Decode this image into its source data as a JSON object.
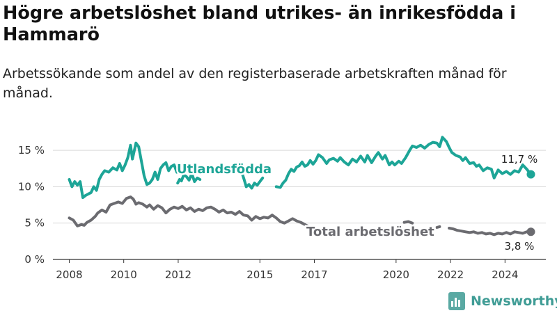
{
  "title": "Högre arbetslöshet bland utrikes- än inrikesfödda i Hammarö",
  "subtitle": "Arbetssökande som andel av den registerbaserade arbetskraften månad för månad.",
  "brand": {
    "name": "Newsworthy",
    "icon": "bar-chart-logo-icon"
  },
  "colors": {
    "utlandsfodda": "#1da597",
    "total": "#6b6b70",
    "grid": "#d9d9d9",
    "axis": "#333333"
  },
  "chart_data": {
    "type": "line",
    "x_unit": "year (decimal)",
    "xlim": [
      2007.4,
      2025.5
    ],
    "ylim": [
      0,
      17.5
    ],
    "grid": "horizontal",
    "x_ticks": [
      {
        "value": 2008,
        "label": "2008"
      },
      {
        "value": 2010,
        "label": "2010"
      },
      {
        "value": 2012,
        "label": "2012"
      },
      {
        "value": 2015,
        "label": "2015"
      },
      {
        "value": 2017,
        "label": "2017"
      },
      {
        "value": 2020,
        "label": "2020"
      },
      {
        "value": 2022,
        "label": "2022"
      },
      {
        "value": 2024,
        "label": "2024"
      }
    ],
    "y_ticks": [
      {
        "value": 0,
        "label": "0 %"
      },
      {
        "value": 5,
        "label": "5 %"
      },
      {
        "value": 10,
        "label": "10 %"
      },
      {
        "value": 15,
        "label": "15 %"
      }
    ],
    "series": [
      {
        "name": "Utlandsfödda",
        "color": "#1da597",
        "end_label": "11,7 %",
        "segments": [
          [
            [
              2008.0,
              11.0
            ],
            [
              2008.1,
              10.0
            ],
            [
              2008.2,
              10.7
            ],
            [
              2008.3,
              10.2
            ],
            [
              2008.4,
              10.7
            ],
            [
              2008.5,
              8.5
            ],
            [
              2008.6,
              8.8
            ],
            [
              2008.8,
              9.2
            ],
            [
              2008.9,
              10.0
            ],
            [
              2009.0,
              9.5
            ],
            [
              2009.1,
              11.0
            ],
            [
              2009.2,
              11.7
            ],
            [
              2009.3,
              12.2
            ],
            [
              2009.45,
              12.0
            ],
            [
              2009.6,
              12.6
            ],
            [
              2009.75,
              12.3
            ],
            [
              2009.85,
              13.2
            ],
            [
              2009.95,
              12.2
            ],
            [
              2010.05,
              13.0
            ],
            [
              2010.15,
              14.0
            ],
            [
              2010.25,
              15.7
            ],
            [
              2010.32,
              13.8
            ],
            [
              2010.45,
              16.0
            ],
            [
              2010.55,
              15.5
            ],
            [
              2010.65,
              13.5
            ],
            [
              2010.75,
              11.5
            ],
            [
              2010.85,
              10.3
            ],
            [
              2010.95,
              10.5
            ],
            [
              2011.05,
              11.0
            ],
            [
              2011.15,
              12.0
            ],
            [
              2011.25,
              11.0
            ],
            [
              2011.35,
              12.5
            ],
            [
              2011.45,
              13.0
            ],
            [
              2011.55,
              13.3
            ],
            [
              2011.65,
              12.2
            ],
            [
              2011.75,
              12.8
            ],
            [
              2011.85,
              13.0
            ],
            [
              2011.95,
              12.0
            ],
            [
              2012.05,
              12.2
            ]
          ],
          [
            [
              2011.98,
              10.5
            ],
            [
              2012.05,
              11.0
            ],
            [
              2012.12,
              10.8
            ],
            [
              2012.2,
              11.6
            ],
            [
              2012.3,
              11.4
            ],
            [
              2012.4,
              10.9
            ],
            [
              2012.5,
              11.8
            ],
            [
              2012.6,
              10.7
            ],
            [
              2012.7,
              11.2
            ],
            [
              2012.8,
              11.0
            ]
          ],
          [
            [
              2014.35,
              11.8
            ],
            [
              2014.42,
              11.0
            ],
            [
              2014.5,
              10.0
            ],
            [
              2014.6,
              10.3
            ],
            [
              2014.7,
              9.8
            ],
            [
              2014.8,
              10.5
            ],
            [
              2014.9,
              10.2
            ],
            [
              2015.0,
              10.7
            ],
            [
              2015.1,
              11.2
            ]
          ],
          [
            [
              2015.6,
              10.0
            ],
            [
              2015.75,
              9.9
            ],
            [
              2015.85,
              10.5
            ],
            [
              2015.95,
              10.9
            ],
            [
              2016.05,
              11.8
            ],
            [
              2016.15,
              12.4
            ],
            [
              2016.25,
              12.1
            ],
            [
              2016.35,
              12.7
            ],
            [
              2016.45,
              12.9
            ],
            [
              2016.55,
              13.4
            ],
            [
              2016.65,
              12.8
            ],
            [
              2016.75,
              13.0
            ],
            [
              2016.85,
              13.6
            ],
            [
              2016.95,
              13.1
            ],
            [
              2017.05,
              13.6
            ],
            [
              2017.15,
              14.4
            ],
            [
              2017.3,
              14.0
            ],
            [
              2017.45,
              13.2
            ],
            [
              2017.55,
              13.7
            ],
            [
              2017.7,
              13.9
            ],
            [
              2017.85,
              13.5
            ],
            [
              2017.95,
              14.0
            ],
            [
              2018.1,
              13.4
            ],
            [
              2018.25,
              13.0
            ],
            [
              2018.4,
              13.8
            ],
            [
              2018.55,
              13.4
            ],
            [
              2018.7,
              14.2
            ],
            [
              2018.85,
              13.4
            ],
            [
              2018.95,
              14.3
            ],
            [
              2019.1,
              13.3
            ],
            [
              2019.25,
              14.2
            ],
            [
              2019.35,
              14.7
            ],
            [
              2019.5,
              13.8
            ],
            [
              2019.6,
              14.3
            ],
            [
              2019.75,
              13.0
            ],
            [
              2019.85,
              13.4
            ],
            [
              2019.95,
              13.0
            ],
            [
              2020.1,
              13.5
            ],
            [
              2020.2,
              13.2
            ],
            [
              2020.35,
              14.0
            ],
            [
              2020.5,
              15.0
            ],
            [
              2020.6,
              15.6
            ],
            [
              2020.75,
              15.4
            ],
            [
              2020.9,
              15.7
            ],
            [
              2021.05,
              15.3
            ],
            [
              2021.2,
              15.8
            ],
            [
              2021.35,
              16.1
            ],
            [
              2021.5,
              16.0
            ],
            [
              2021.6,
              15.5
            ],
            [
              2021.7,
              16.8
            ],
            [
              2021.85,
              16.2
            ],
            [
              2021.95,
              15.4
            ],
            [
              2022.05,
              14.7
            ],
            [
              2022.2,
              14.3
            ],
            [
              2022.35,
              14.1
            ],
            [
              2022.45,
              13.6
            ],
            [
              2022.55,
              14.0
            ],
            [
              2022.7,
              13.2
            ],
            [
              2022.85,
              13.3
            ],
            [
              2022.95,
              12.8
            ],
            [
              2023.05,
              13.0
            ],
            [
              2023.2,
              12.2
            ],
            [
              2023.35,
              12.6
            ],
            [
              2023.5,
              12.4
            ],
            [
              2023.6,
              11.2
            ],
            [
              2023.75,
              12.3
            ],
            [
              2023.9,
              11.8
            ],
            [
              2024.05,
              12.1
            ],
            [
              2024.2,
              11.7
            ],
            [
              2024.35,
              12.2
            ],
            [
              2024.5,
              12.0
            ],
            [
              2024.65,
              13.0
            ],
            [
              2024.8,
              12.4
            ],
            [
              2024.95,
              11.7
            ]
          ]
        ]
      },
      {
        "name": "Total arbetslöshet",
        "color": "#6b6b70",
        "end_label": "3,8 %",
        "segments": [
          [
            [
              2008.0,
              5.7
            ],
            [
              2008.15,
              5.4
            ],
            [
              2008.3,
              4.6
            ],
            [
              2008.45,
              4.8
            ],
            [
              2008.55,
              4.7
            ],
            [
              2008.65,
              5.1
            ],
            [
              2008.8,
              5.4
            ],
            [
              2008.95,
              5.9
            ],
            [
              2009.05,
              6.4
            ],
            [
              2009.2,
              6.8
            ],
            [
              2009.35,
              6.5
            ],
            [
              2009.5,
              7.5
            ],
            [
              2009.65,
              7.7
            ],
            [
              2009.8,
              7.9
            ],
            [
              2009.95,
              7.7
            ],
            [
              2010.1,
              8.4
            ],
            [
              2010.25,
              8.6
            ],
            [
              2010.35,
              8.3
            ],
            [
              2010.45,
              7.6
            ],
            [
              2010.55,
              7.8
            ],
            [
              2010.7,
              7.6
            ],
            [
              2010.85,
              7.2
            ],
            [
              2010.95,
              7.5
            ],
            [
              2011.1,
              6.9
            ],
            [
              2011.25,
              7.4
            ],
            [
              2011.4,
              7.1
            ],
            [
              2011.55,
              6.4
            ],
            [
              2011.7,
              6.9
            ],
            [
              2011.85,
              7.2
            ],
            [
              2012.0,
              7.0
            ],
            [
              2012.15,
              7.3
            ],
            [
              2012.3,
              6.8
            ],
            [
              2012.45,
              7.1
            ],
            [
              2012.6,
              6.6
            ],
            [
              2012.75,
              6.9
            ],
            [
              2012.9,
              6.7
            ],
            [
              2013.05,
              7.1
            ],
            [
              2013.2,
              7.2
            ],
            [
              2013.35,
              6.9
            ],
            [
              2013.5,
              6.5
            ],
            [
              2013.65,
              6.8
            ],
            [
              2013.8,
              6.4
            ],
            [
              2013.95,
              6.5
            ],
            [
              2014.1,
              6.2
            ],
            [
              2014.25,
              6.6
            ],
            [
              2014.4,
              6.1
            ],
            [
              2014.55,
              6.0
            ],
            [
              2014.7,
              5.4
            ],
            [
              2014.85,
              5.9
            ],
            [
              2015.0,
              5.6
            ],
            [
              2015.15,
              5.8
            ],
            [
              2015.3,
              5.7
            ],
            [
              2015.45,
              6.1
            ],
            [
              2015.6,
              5.7
            ],
            [
              2015.75,
              5.2
            ],
            [
              2015.9,
              5.0
            ],
            [
              2016.05,
              5.3
            ],
            [
              2016.2,
              5.6
            ],
            [
              2016.35,
              5.3
            ],
            [
              2016.5,
              5.1
            ],
            [
              2016.65,
              4.8
            ],
            [
              2016.8,
              4.5
            ]
          ],
          [
            [
              2020.3,
              5.1
            ],
            [
              2020.45,
              5.2
            ],
            [
              2020.6,
              5.0
            ]
          ],
          [
            [
              2021.5,
              4.4
            ],
            [
              2021.6,
              4.5
            ]
          ],
          [
            [
              2021.95,
              4.3
            ],
            [
              2022.1,
              4.2
            ],
            [
              2022.25,
              4.0
            ],
            [
              2022.4,
              3.9
            ],
            [
              2022.55,
              3.8
            ],
            [
              2022.7,
              3.7
            ],
            [
              2022.85,
              3.8
            ],
            [
              2023.0,
              3.6
            ],
            [
              2023.15,
              3.7
            ],
            [
              2023.3,
              3.5
            ],
            [
              2023.45,
              3.6
            ],
            [
              2023.6,
              3.4
            ],
            [
              2023.75,
              3.6
            ],
            [
              2023.9,
              3.5
            ],
            [
              2024.05,
              3.7
            ],
            [
              2024.2,
              3.5
            ],
            [
              2024.35,
              3.8
            ],
            [
              2024.5,
              3.7
            ],
            [
              2024.65,
              3.6
            ],
            [
              2024.8,
              3.8
            ],
            [
              2024.95,
              3.8
            ]
          ]
        ]
      }
    ]
  }
}
